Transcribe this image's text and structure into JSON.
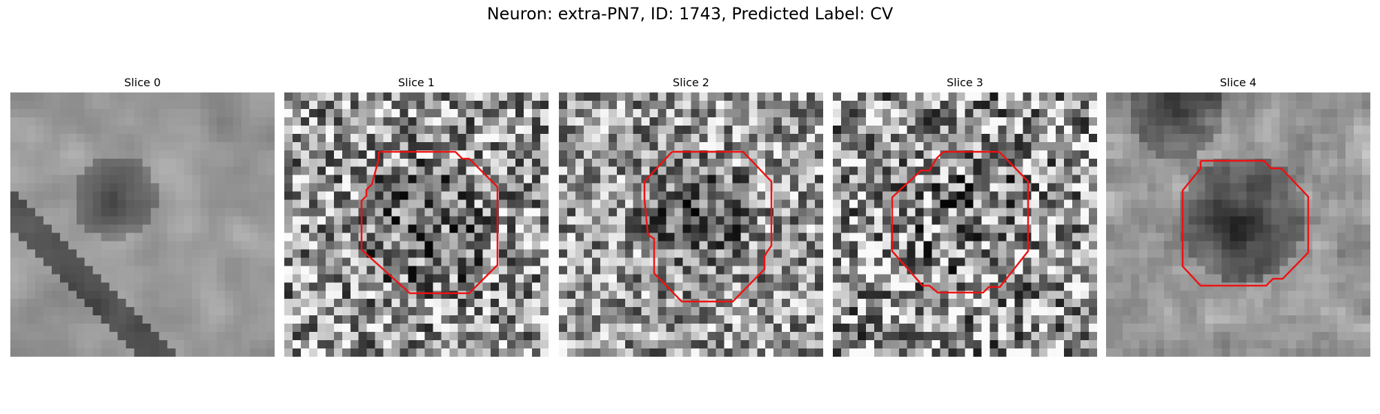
{
  "figure": {
    "suptitle": "Neuron: extra-PN7, ID: 1743, Predicted Label: CV"
  },
  "colors": {
    "contour": "#ee1111",
    "background": "#ffffff"
  },
  "panels": [
    {
      "title": "Slice 0",
      "has_contour": false
    },
    {
      "title": "Slice 1",
      "has_contour": true
    },
    {
      "title": "Slice 2",
      "has_contour": true
    },
    {
      "title": "Slice 3",
      "has_contour": true
    },
    {
      "title": "Slice 4",
      "has_contour": true
    }
  ]
}
